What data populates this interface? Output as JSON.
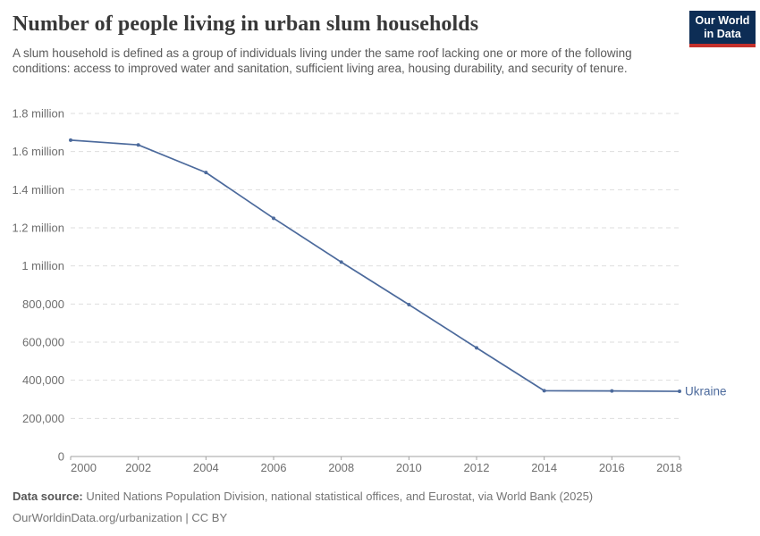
{
  "header": {
    "title": "Number of people living in urban slum households",
    "subtitle": "A slum household is defined as a group of individuals living under the same roof lacking one or more of the following conditions: access to improved water and sanitation, sufficient living area, housing durability, and security of tenure.",
    "logo": {
      "line1": "Our World",
      "line2": "in Data",
      "bg_color": "#0d2d55",
      "accent_color": "#c4302b"
    }
  },
  "chart_data": {
    "type": "line",
    "title": "Number of people living in urban slum households",
    "xlabel": "",
    "ylabel": "",
    "x": [
      2000,
      2002,
      2004,
      2006,
      2008,
      2010,
      2012,
      2014,
      2016,
      2018
    ],
    "series": [
      {
        "name": "Ukraine",
        "color": "#4C6A9C",
        "values": [
          1660000,
          1635000,
          1490000,
          1250000,
          1020000,
          797000,
          570000,
          345000,
          344000,
          342000
        ]
      }
    ],
    "xlim": [
      2000,
      2018
    ],
    "ylim": [
      0,
      1800000
    ],
    "x_ticks": [
      2000,
      2002,
      2004,
      2006,
      2008,
      2010,
      2012,
      2014,
      2016,
      2018
    ],
    "y_ticks": [
      {
        "value": 0,
        "label": "0"
      },
      {
        "value": 200000,
        "label": "200,000"
      },
      {
        "value": 400000,
        "label": "400,000"
      },
      {
        "value": 600000,
        "label": "600,000"
      },
      {
        "value": 800000,
        "label": "800,000"
      },
      {
        "value": 1000000,
        "label": "1 million"
      },
      {
        "value": 1200000,
        "label": "1.2 million"
      },
      {
        "value": 1400000,
        "label": "1.4 million"
      },
      {
        "value": 1600000,
        "label": "1.6 million"
      },
      {
        "value": 1800000,
        "label": "1.8 million"
      }
    ],
    "grid": "horizontal-dashed",
    "legend_position": "end-of-line",
    "colors": {
      "gridline": "#dedede",
      "axis": "#a1a1a1",
      "tick_label": "#6e6e6e"
    }
  },
  "footer": {
    "datasource_label": "Data source:",
    "datasource_text": "United Nations Population Division, national statistical offices, and Eurostat, via World Bank (2025)",
    "attribution": "OurWorldinData.org/urbanization | CC BY"
  }
}
